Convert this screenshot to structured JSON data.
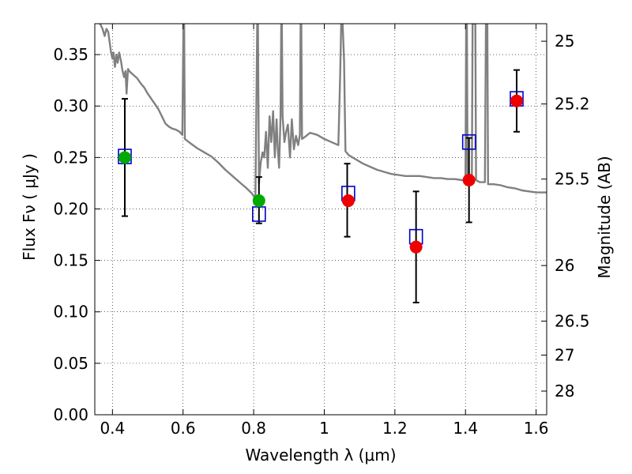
{
  "chart_data": {
    "type": "scatter",
    "xlabel": "Wavelength  λ (μm)",
    "ylabel": "Flux  Fν  ( μJy )",
    "ylabel_right": "Magnitude (AB)",
    "xlim": [
      0.35,
      1.63
    ],
    "ylim": [
      0.0,
      0.38
    ],
    "grid": true,
    "x_ticks": [
      0.4,
      0.6,
      0.8,
      1.0,
      1.2,
      1.4,
      1.6
    ],
    "x_tick_labels": [
      "0.4",
      "0.6",
      "0.8",
      "1",
      "1.2",
      "1.4",
      "1.6"
    ],
    "y_ticks": [
      0.0,
      0.05,
      0.1,
      0.15,
      0.2,
      0.25,
      0.3,
      0.35
    ],
    "y_tick_labels": [
      "0.00",
      "0.05",
      "0.10",
      "0.15",
      "0.20",
      "0.25",
      "0.30",
      "0.35"
    ],
    "right_ticks": [
      {
        "label": "25",
        "flux": 0.363
      },
      {
        "label": "25.2",
        "flux": 0.302
      },
      {
        "label": "25.5",
        "flux": 0.229
      },
      {
        "label": "26",
        "flux": 0.145
      },
      {
        "label": "26.5",
        "flux": 0.091
      },
      {
        "label": "27",
        "flux": 0.058
      },
      {
        "label": "28",
        "flux": 0.023
      }
    ],
    "series": [
      {
        "kind": "errorbar",
        "color": "#000000",
        "points": [
          {
            "x": 0.435,
            "lo": 0.193,
            "hi": 0.307
          },
          {
            "x": 0.815,
            "lo": 0.186,
            "hi": 0.231
          },
          {
            "x": 1.065,
            "lo": 0.173,
            "hi": 0.244
          },
          {
            "x": 1.26,
            "lo": 0.109,
            "hi": 0.217
          },
          {
            "x": 1.41,
            "lo": 0.187,
            "hi": 0.269
          },
          {
            "x": 1.545,
            "lo": 0.275,
            "hi": 0.335
          }
        ]
      },
      {
        "kind": "model_squares",
        "color": "#0000cc",
        "points": [
          {
            "x": 0.435,
            "y": 0.251
          },
          {
            "x": 0.815,
            "y": 0.195
          },
          {
            "x": 1.068,
            "y": 0.215
          },
          {
            "x": 1.26,
            "y": 0.173
          },
          {
            "x": 1.41,
            "y": 0.265
          },
          {
            "x": 1.545,
            "y": 0.307
          }
        ]
      },
      {
        "kind": "observed_green",
        "color": "#00aa00",
        "points": [
          {
            "x": 0.435,
            "y": 0.25
          },
          {
            "x": 0.815,
            "y": 0.208
          }
        ]
      },
      {
        "kind": "observed_red",
        "color": "#ee0000",
        "points": [
          {
            "x": 1.068,
            "y": 0.208
          },
          {
            "x": 1.26,
            "y": 0.163
          },
          {
            "x": 1.41,
            "y": 0.228
          },
          {
            "x": 1.545,
            "y": 0.305
          }
        ]
      },
      {
        "kind": "spectrum",
        "color": "#808080",
        "points": [
          [
            0.355,
            0.39
          ],
          [
            0.365,
            0.38
          ],
          [
            0.372,
            0.375
          ],
          [
            0.378,
            0.368
          ],
          [
            0.383,
            0.375
          ],
          [
            0.388,
            0.372
          ],
          [
            0.392,
            0.362
          ],
          [
            0.396,
            0.352
          ],
          [
            0.4,
            0.346
          ],
          [
            0.403,
            0.352
          ],
          [
            0.407,
            0.338
          ],
          [
            0.411,
            0.35
          ],
          [
            0.415,
            0.342
          ],
          [
            0.419,
            0.352
          ],
          [
            0.424,
            0.344
          ],
          [
            0.428,
            0.335
          ],
          [
            0.433,
            0.328
          ],
          [
            0.437,
            0.334
          ],
          [
            0.44,
            0.312
          ],
          [
            0.444,
            0.336
          ],
          [
            0.45,
            0.333
          ],
          [
            0.46,
            0.33
          ],
          [
            0.47,
            0.327
          ],
          [
            0.48,
            0.322
          ],
          [
            0.49,
            0.318
          ],
          [
            0.5,
            0.312
          ],
          [
            0.51,
            0.307
          ],
          [
            0.52,
            0.302
          ],
          [
            0.53,
            0.297
          ],
          [
            0.54,
            0.29
          ],
          [
            0.55,
            0.283
          ],
          [
            0.56,
            0.28
          ],
          [
            0.57,
            0.278
          ],
          [
            0.58,
            0.277
          ],
          [
            0.59,
            0.275
          ],
          [
            0.598,
            0.272
          ],
          [
            0.601,
            0.38
          ],
          [
            0.603,
            0.38
          ],
          [
            0.605,
            0.268
          ],
          [
            0.62,
            0.264
          ],
          [
            0.64,
            0.259
          ],
          [
            0.66,
            0.255
          ],
          [
            0.68,
            0.251
          ],
          [
            0.7,
            0.245
          ],
          [
            0.72,
            0.238
          ],
          [
            0.74,
            0.232
          ],
          [
            0.76,
            0.226
          ],
          [
            0.78,
            0.22
          ],
          [
            0.795,
            0.215
          ],
          [
            0.805,
            0.21
          ],
          [
            0.81,
            0.38
          ],
          [
            0.812,
            0.38
          ],
          [
            0.815,
            0.225
          ],
          [
            0.82,
            0.245
          ],
          [
            0.825,
            0.255
          ],
          [
            0.83,
            0.25
          ],
          [
            0.835,
            0.275
          ],
          [
            0.84,
            0.24
          ],
          [
            0.845,
            0.29
          ],
          [
            0.85,
            0.265
          ],
          [
            0.855,
            0.295
          ],
          [
            0.86,
            0.25
          ],
          [
            0.865,
            0.287
          ],
          [
            0.868,
            0.26
          ],
          [
            0.872,
            0.24
          ],
          [
            0.876,
            0.29
          ],
          [
            0.878,
            0.38
          ],
          [
            0.88,
            0.38
          ],
          [
            0.882,
            0.29
          ],
          [
            0.887,
            0.265
          ],
          [
            0.892,
            0.275
          ],
          [
            0.897,
            0.282
          ],
          [
            0.903,
            0.25
          ],
          [
            0.908,
            0.287
          ],
          [
            0.914,
            0.258
          ],
          [
            0.92,
            0.271
          ],
          [
            0.926,
            0.262
          ],
          [
            0.931,
            0.272
          ],
          [
            0.933,
            0.38
          ],
          [
            0.935,
            0.38
          ],
          [
            0.937,
            0.268
          ],
          [
            0.945,
            0.27
          ],
          [
            0.96,
            0.274
          ],
          [
            0.98,
            0.272
          ],
          [
            1.0,
            0.268
          ],
          [
            1.02,
            0.265
          ],
          [
            1.04,
            0.262
          ],
          [
            1.045,
            0.33
          ],
          [
            1.048,
            0.38
          ],
          [
            1.052,
            0.38
          ],
          [
            1.056,
            0.345
          ],
          [
            1.06,
            0.256
          ],
          [
            1.07,
            0.252
          ],
          [
            1.09,
            0.248
          ],
          [
            1.11,
            0.244
          ],
          [
            1.13,
            0.241
          ],
          [
            1.15,
            0.238
          ],
          [
            1.17,
            0.236
          ],
          [
            1.19,
            0.234
          ],
          [
            1.21,
            0.233
          ],
          [
            1.23,
            0.232
          ],
          [
            1.25,
            0.232
          ],
          [
            1.27,
            0.232
          ],
          [
            1.29,
            0.231
          ],
          [
            1.31,
            0.23
          ],
          [
            1.33,
            0.23
          ],
          [
            1.35,
            0.229
          ],
          [
            1.37,
            0.229
          ],
          [
            1.39,
            0.228
          ],
          [
            1.4,
            0.228
          ],
          [
            1.402,
            0.38
          ],
          [
            1.404,
            0.38
          ],
          [
            1.406,
            0.228
          ],
          [
            1.41,
            0.227
          ],
          [
            1.418,
            0.228
          ],
          [
            1.42,
            0.38
          ],
          [
            1.428,
            0.38
          ],
          [
            1.43,
            0.228
          ],
          [
            1.44,
            0.226
          ],
          [
            1.455,
            0.226
          ],
          [
            1.458,
            0.38
          ],
          [
            1.462,
            0.38
          ],
          [
            1.464,
            0.224
          ],
          [
            1.48,
            0.224
          ],
          [
            1.5,
            0.223
          ],
          [
            1.52,
            0.221
          ],
          [
            1.54,
            0.22
          ],
          [
            1.56,
            0.218
          ],
          [
            1.58,
            0.217
          ],
          [
            1.6,
            0.216
          ],
          [
            1.63,
            0.216
          ]
        ]
      }
    ]
  }
}
